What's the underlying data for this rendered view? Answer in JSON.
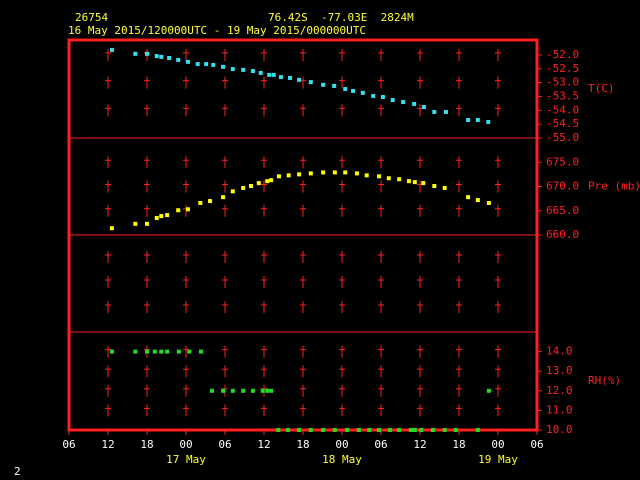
{
  "header": {
    "station": "26754",
    "location": "76.42S  -77.03E  2824M",
    "period": "16 May 2015/120000UTC - 19 May 2015/000000UTC"
  },
  "page_number": "2",
  "x_axis": {
    "xlim": [
      0,
      72
    ],
    "xticks": [
      {
        "value": 0,
        "label": "06"
      },
      {
        "value": 6,
        "label": "12"
      },
      {
        "value": 12,
        "label": "18"
      },
      {
        "value": 18,
        "label": "00"
      },
      {
        "value": 24,
        "label": "06"
      },
      {
        "value": 30,
        "label": "12"
      },
      {
        "value": 36,
        "label": "18"
      },
      {
        "value": 42,
        "label": "00"
      },
      {
        "value": 48,
        "label": "06"
      },
      {
        "value": 54,
        "label": "12"
      },
      {
        "value": 60,
        "label": "18"
      },
      {
        "value": 66,
        "label": "00"
      },
      {
        "value": 72,
        "label": "06"
      }
    ],
    "day_ticks": [
      {
        "value": 18,
        "label": "17 May"
      },
      {
        "value": 42,
        "label": "18 May"
      },
      {
        "value": 66,
        "label": "19 May"
      }
    ]
  },
  "chart_data": [
    {
      "type": "scatter",
      "ylabel": "T(C)",
      "color": "#33e0ee",
      "ylim": [
        -55,
        -51.46
      ],
      "yticks": [
        {
          "value": -52,
          "label": "-52.0"
        },
        -52.5,
        {
          "value": -53,
          "label": "-53.0"
        },
        -53.5,
        {
          "value": -54,
          "label": "-54.0"
        },
        -54.5,
        {
          "value": -55,
          "label": "-55.0"
        }
      ],
      "x": [
        6.6,
        10.2,
        12,
        13.5,
        14.2,
        15.4,
        16.8,
        18.3,
        19.8,
        21.1,
        22.2,
        23.7,
        25.2,
        26.8,
        28.3,
        29.5,
        30.8,
        31.5,
        32.6,
        34,
        35.4,
        37.2,
        39.1,
        40.8,
        42.5,
        43.7,
        45.2,
        46.8,
        48.3,
        49.8,
        51.4,
        53.1,
        54.6,
        56.2,
        58,
        61.4,
        62.9,
        64.5
      ],
      "values": [
        -51.82,
        -51.96,
        -51.96,
        -52.04,
        -52.07,
        -52.11,
        -52.18,
        -52.25,
        -52.33,
        -52.33,
        -52.36,
        -52.43,
        -52.51,
        -52.54,
        -52.58,
        -52.65,
        -52.72,
        -52.72,
        -52.8,
        -52.83,
        -52.9,
        -52.98,
        -53.08,
        -53.12,
        -53.23,
        -53.3,
        -53.37,
        -53.48,
        -53.52,
        -53.63,
        -53.7,
        -53.77,
        -53.88,
        -54.06,
        -54.06,
        -54.35,
        -54.35,
        -54.42
      ]
    },
    {
      "type": "scatter",
      "ylabel": "Pre (mb)",
      "color": "#ffff00",
      "ylim": [
        660,
        680
      ],
      "yticks": [
        {
          "value": 675,
          "label": "675.0"
        },
        {
          "value": 670,
          "label": "670.0"
        },
        {
          "value": 665,
          "label": "665.0"
        },
        {
          "value": 660,
          "label": "660.0"
        }
      ],
      "x": [
        6.6,
        10.2,
        12,
        13.5,
        14.2,
        15.1,
        16.8,
        18.3,
        20.2,
        21.7,
        23.7,
        25.2,
        26.8,
        28,
        29.2,
        30.5,
        31.1,
        32.3,
        33.8,
        35.4,
        37.2,
        39.1,
        40.9,
        42.5,
        44.3,
        45.8,
        47.7,
        49.2,
        50.8,
        52.3,
        53.2,
        54.5,
        56.2,
        57.8,
        61.4,
        62.9,
        64.6
      ],
      "values": [
        661.4,
        662.3,
        662.3,
        663.5,
        663.9,
        664.1,
        665.1,
        665.3,
        666.6,
        667,
        667.8,
        669,
        669.7,
        670.1,
        670.7,
        671.1,
        671.3,
        672.1,
        672.3,
        672.5,
        672.7,
        672.9,
        672.9,
        672.9,
        672.7,
        672.3,
        672.1,
        671.7,
        671.5,
        671.1,
        670.9,
        670.7,
        670.1,
        669.7,
        667.8,
        667.2,
        666.6
      ]
    },
    {
      "type": "scatter",
      "ylabel": "RH(%)",
      "color": "#22dd22",
      "ylim": [
        10,
        15
      ],
      "yticks": [
        {
          "value": 14,
          "label": "14.0"
        },
        {
          "value": 13,
          "label": "13.0"
        },
        {
          "value": 12,
          "label": "12.0"
        },
        {
          "value": 11,
          "label": "11.0"
        },
        {
          "value": 10,
          "label": "10.0"
        }
      ],
      "x": [
        6.6,
        10.2,
        12,
        13.2,
        14.2,
        15.1,
        16.9,
        18.5,
        20.3,
        22,
        23.7,
        25.2,
        26.8,
        28.3,
        29.8,
        30.5,
        31.1,
        32.2,
        33.7,
        35.4,
        37.2,
        39.1,
        40.9,
        42.8,
        44.6,
        46.2,
        47.7,
        49.4,
        50.8,
        52.6,
        53.2,
        54.2,
        56,
        57.8,
        59.5,
        62.9,
        64.6
      ],
      "values": [
        14,
        14,
        14,
        14,
        14,
        14,
        14,
        14,
        14,
        12,
        12,
        12,
        12,
        12,
        12,
        12,
        12,
        10,
        10,
        10,
        10,
        10,
        10,
        10,
        10,
        10,
        10,
        10,
        10,
        10,
        10,
        10,
        10,
        10,
        10,
        10,
        12
      ]
    }
  ]
}
